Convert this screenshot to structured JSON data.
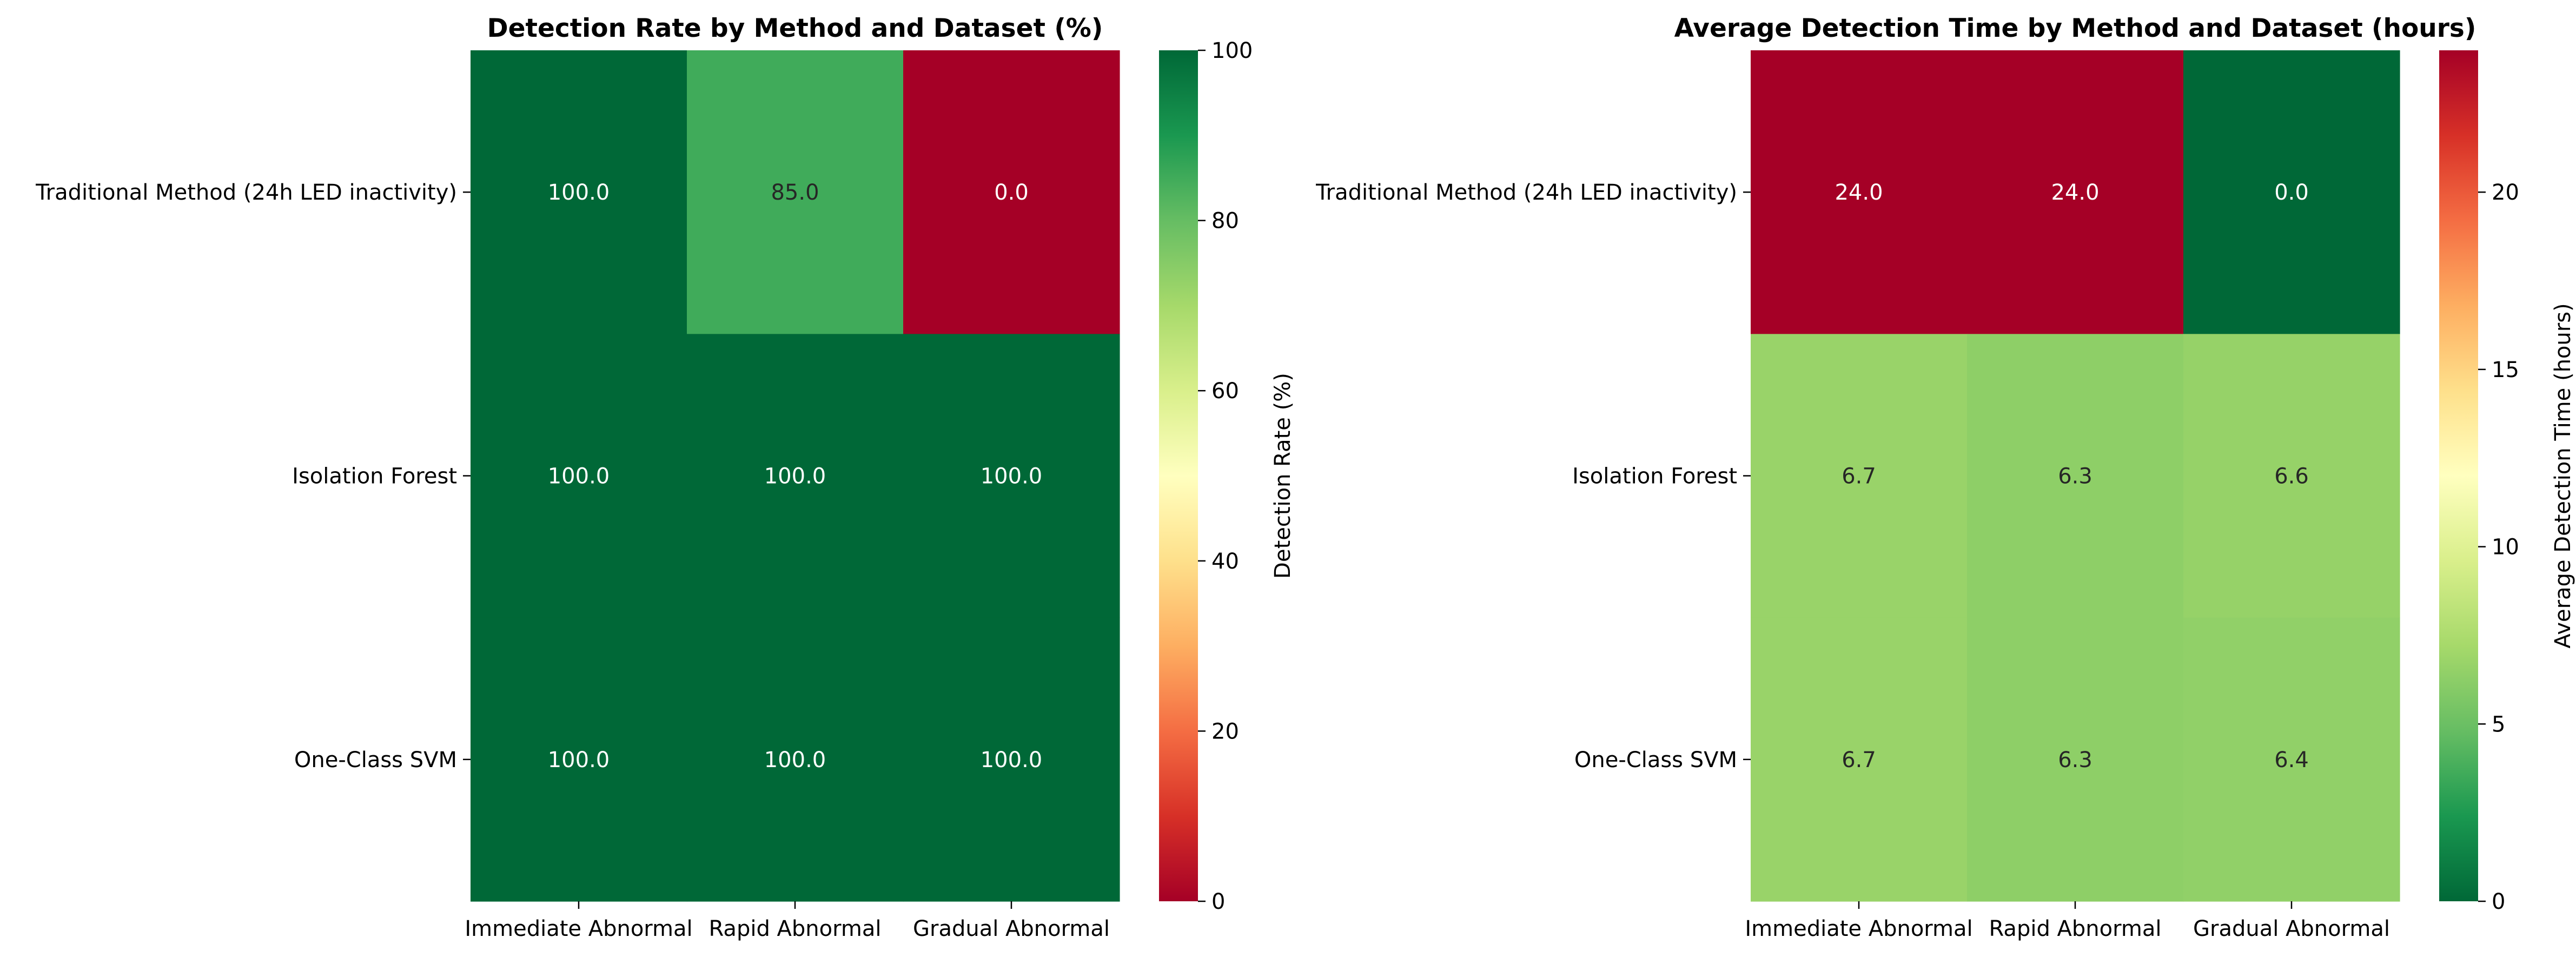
{
  "chart_data": [
    {
      "type": "heatmap",
      "title": "Detection Rate by Method and Dataset (%)",
      "x_categories": [
        "Immediate Abnormal",
        "Rapid Abnormal",
        "Gradual Abnormal"
      ],
      "y_categories": [
        "Traditional Method (24h LED inactivity)",
        "Isolation Forest",
        "One-Class SVM"
      ],
      "values": [
        [
          100.0,
          85.0,
          0.0
        ],
        [
          100.0,
          100.0,
          100.0
        ],
        [
          100.0,
          100.0,
          100.0
        ]
      ],
      "value_labels": [
        [
          "100.0",
          "85.0",
          "0.0"
        ],
        [
          "100.0",
          "100.0",
          "100.0"
        ],
        [
          "100.0",
          "100.0",
          "100.0"
        ]
      ],
      "colorbar": {
        "label": "Detection Rate (%)",
        "range": [
          0,
          100
        ],
        "ticks": [
          0,
          20,
          40,
          60,
          80,
          100
        ],
        "colormap": "RdYlGn"
      }
    },
    {
      "type": "heatmap",
      "title": "Average Detection Time by Method and Dataset (hours)",
      "x_categories": [
        "Immediate Abnormal",
        "Rapid Abnormal",
        "Gradual Abnormal"
      ],
      "y_categories": [
        "Traditional Method (24h LED inactivity)",
        "Isolation Forest",
        "One-Class SVM"
      ],
      "values": [
        [
          24.0,
          24.0,
          0.0
        ],
        [
          6.7,
          6.3,
          6.6
        ],
        [
          6.7,
          6.3,
          6.4
        ]
      ],
      "value_labels": [
        [
          "24.0",
          "24.0",
          "0.0"
        ],
        [
          "6.7",
          "6.3",
          "6.6"
        ],
        [
          "6.7",
          "6.3",
          "6.4"
        ]
      ],
      "colorbar": {
        "label": "Average Detection Time (hours)",
        "range": [
          0,
          24
        ],
        "ticks": [
          0,
          5,
          10,
          15,
          20
        ],
        "colormap": "RdYlGn_r"
      }
    }
  ]
}
